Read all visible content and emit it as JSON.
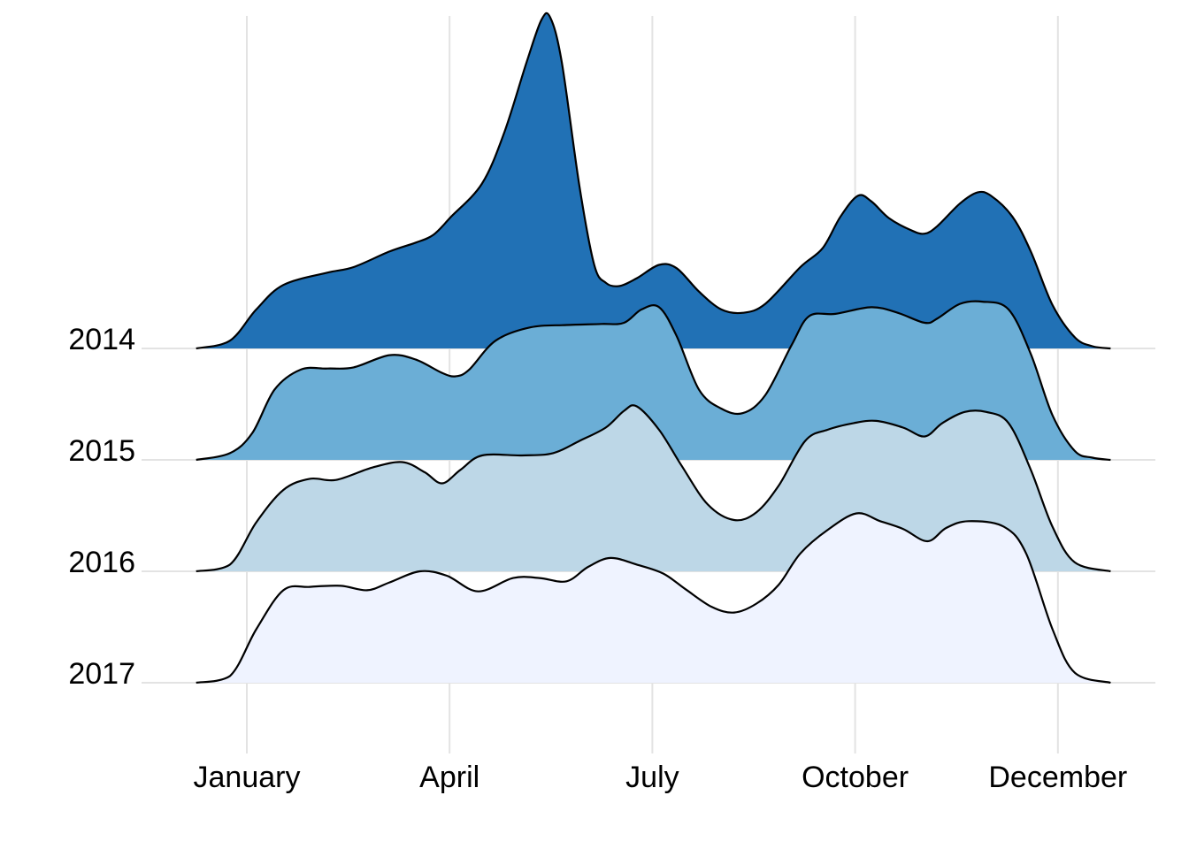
{
  "chart_data": {
    "type": "ridgeline",
    "title": "",
    "xlabel": "",
    "ylabel": "",
    "xlim": [
      0.25,
      13.78
    ],
    "x_ticks": [
      {
        "value": 1,
        "label": "January"
      },
      {
        "value": 4,
        "label": "April"
      },
      {
        "value": 7,
        "label": "July"
      },
      {
        "value": 10,
        "label": "October"
      },
      {
        "value": 13,
        "label": "December"
      }
    ],
    "grid": true,
    "series": [
      {
        "name": "2014",
        "color": "#2171b5",
        "x": [
          0.25,
          0.75,
          1.14,
          1.54,
          2.19,
          2.58,
          3.11,
          3.5,
          3.76,
          4.02,
          4.48,
          4.81,
          5.14,
          5.36,
          5.49,
          5.66,
          5.92,
          6.14,
          6.31,
          6.51,
          6.77,
          7.1,
          7.36,
          7.69,
          8.02,
          8.34,
          8.67,
          9.19,
          9.52,
          9.78,
          10.04,
          10.24,
          10.5,
          10.83,
          11.03,
          11.22,
          11.55,
          11.81,
          12.01,
          12.33,
          12.6,
          12.92,
          13.25,
          13.51,
          13.78
        ],
        "density": [
          0,
          0.07,
          0.35,
          0.57,
          0.68,
          0.73,
          0.87,
          0.95,
          1.02,
          1.18,
          1.48,
          1.94,
          2.57,
          2.95,
          2.97,
          2.57,
          1.46,
          0.75,
          0.59,
          0.56,
          0.63,
          0.75,
          0.72,
          0.51,
          0.35,
          0.32,
          0.4,
          0.73,
          0.9,
          1.18,
          1.37,
          1.32,
          1.17,
          1.06,
          1.03,
          1.1,
          1.3,
          1.4,
          1.37,
          1.18,
          0.87,
          0.39,
          0.1,
          0.02,
          0
        ]
      },
      {
        "name": "2015",
        "color": "#6baed6",
        "x": [
          0.25,
          0.75,
          1.08,
          1.41,
          1.8,
          2.19,
          2.58,
          3.11,
          3.5,
          3.89,
          4.09,
          4.29,
          4.68,
          5.2,
          5.73,
          6.25,
          6.58,
          6.84,
          7.1,
          7.36,
          7.69,
          8.02,
          8.34,
          8.67,
          9.06,
          9.32,
          9.71,
          10.24,
          10.63,
          11.03,
          11.22,
          11.55,
          11.88,
          12.27,
          12.6,
          12.92,
          13.25,
          13.51,
          13.78
        ],
        "density": [
          0,
          0.06,
          0.24,
          0.63,
          0.81,
          0.82,
          0.83,
          0.94,
          0.9,
          0.78,
          0.75,
          0.81,
          1.07,
          1.19,
          1.21,
          1.22,
          1.23,
          1.35,
          1.37,
          1.11,
          0.63,
          0.46,
          0.42,
          0.58,
          1.03,
          1.29,
          1.31,
          1.37,
          1.32,
          1.23,
          1.27,
          1.4,
          1.42,
          1.35,
          0.95,
          0.4,
          0.08,
          0.02,
          0
        ]
      },
      {
        "name": "2016",
        "color": "#bdd7e7",
        "x": [
          0.25,
          0.75,
          1.14,
          1.54,
          1.93,
          2.32,
          2.85,
          3.3,
          3.63,
          3.89,
          4.16,
          4.48,
          5.07,
          5.53,
          5.92,
          6.31,
          6.58,
          6.77,
          7.1,
          7.43,
          7.82,
          8.21,
          8.54,
          8.87,
          9.26,
          9.59,
          9.98,
          10.31,
          10.71,
          11.03,
          11.29,
          11.62,
          11.94,
          12.27,
          12.6,
          12.92,
          13.25,
          13.78
        ],
        "density": [
          0,
          0.06,
          0.44,
          0.73,
          0.83,
          0.82,
          0.93,
          0.98,
          0.89,
          0.79,
          0.91,
          1.04,
          1.04,
          1.06,
          1.17,
          1.29,
          1.44,
          1.48,
          1.27,
          0.95,
          0.6,
          0.46,
          0.53,
          0.77,
          1.17,
          1.27,
          1.33,
          1.35,
          1.29,
          1.21,
          1.33,
          1.43,
          1.43,
          1.33,
          0.91,
          0.4,
          0.08,
          0
        ]
      },
      {
        "name": "2017",
        "color": "#eff3ff",
        "x": [
          0.25,
          0.75,
          1.14,
          1.54,
          1.93,
          2.39,
          2.78,
          3.11,
          3.56,
          3.96,
          4.42,
          4.94,
          5.33,
          5.73,
          6.05,
          6.38,
          6.77,
          7.16,
          7.49,
          7.88,
          8.21,
          8.54,
          8.87,
          9.19,
          9.59,
          10.02,
          10.37,
          10.71,
          11.07,
          11.35,
          11.68,
          12.2,
          12.53,
          12.92,
          13.25,
          13.78
        ],
        "density": [
          0,
          0.06,
          0.48,
          0.83,
          0.86,
          0.87,
          0.83,
          0.9,
          1.0,
          0.96,
          0.82,
          0.94,
          0.94,
          0.91,
          1.04,
          1.12,
          1.06,
          0.98,
          0.84,
          0.68,
          0.63,
          0.71,
          0.88,
          1.16,
          1.37,
          1.52,
          1.45,
          1.38,
          1.27,
          1.39,
          1.45,
          1.4,
          1.16,
          0.48,
          0.09,
          0
        ]
      }
    ]
  }
}
